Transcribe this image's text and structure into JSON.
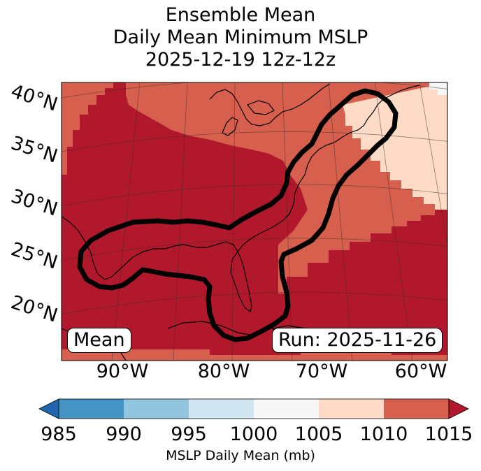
{
  "title": {
    "line1": "Ensemble Mean",
    "line2": "Daily Mean Minimum MSLP",
    "line3": "2025-12-19 12z-12z"
  },
  "map": {
    "lat_labels": [
      "40°N",
      "35°N",
      "30°N",
      "25°N",
      "20°N"
    ],
    "lon_labels": [
      "90°W",
      "80°W",
      "70°W",
      "60°W"
    ],
    "stat_label": "Mean",
    "run_label": "Run: 2025-11-26",
    "contour_color": "#000000",
    "fill_colors": {
      "1005-1010": "#fddbc7",
      "1010-1015": "#d6604d",
      "above-1015": "#b2182b"
    }
  },
  "colorbar": {
    "ticks": [
      "985",
      "990",
      "995",
      "1000",
      "1005",
      "1010",
      "1015"
    ],
    "label": "MSLP Daily Mean (mb)",
    "colors": [
      "#2166ac",
      "#4393c3",
      "#92c5de",
      "#d1e5f0",
      "#f7f7f7",
      "#fddbc7",
      "#d6604d",
      "#b2182b"
    ]
  }
}
